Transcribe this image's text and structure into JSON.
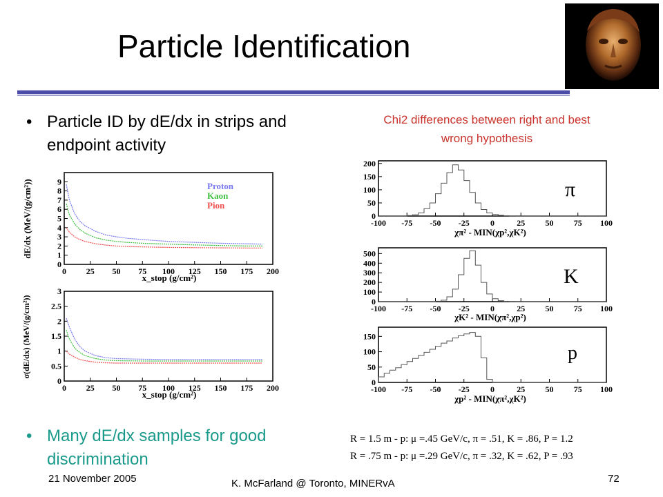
{
  "slide": {
    "title": "Particle Identification",
    "bullets": [
      "Particle ID by dE/dx in strips and endpoint activity",
      "Many dE/dx samples for good discrimination"
    ],
    "chi2_caption": "Chi2 differences between right and best wrong hypothesis",
    "resolution_lines": [
      "R = 1.5 m -  p: μ =.45 GeV/c,  π = .51,  K = .86,  P = 1.2",
      "R = .75 m -  p: μ =.29 GeV/c,  π = .32,  K = .62,  P = .93"
    ],
    "footer": {
      "date": "21 November 2005",
      "author": "K. McFarland @ Toronto, MINERvA",
      "page": "72"
    },
    "colors": {
      "title_rule": "#4b4ba8",
      "bullet2": "#1a9a8a",
      "caption": "#c8322b",
      "proton": "#7878f0",
      "kaon": "#40c040",
      "pion": "#f05050"
    }
  },
  "chart_data": [
    {
      "type": "line",
      "xlabel": "x_stop (g/cm²)",
      "ylabel": "dE/dx (MeV/(g/cm²))",
      "xlim": [
        0,
        200
      ],
      "ylim": [
        0,
        10
      ],
      "xticks": [
        0,
        25,
        50,
        75,
        100,
        125,
        150,
        175,
        200
      ],
      "yticks": [
        0,
        1,
        2,
        3,
        4,
        5,
        6,
        7,
        8,
        9
      ],
      "legend": [
        "Proton",
        "Kaon",
        "Pion"
      ],
      "legend_position": "top-right",
      "x": [
        2,
        5,
        10,
        15,
        20,
        30,
        40,
        50,
        60,
        75,
        100,
        125,
        150,
        175,
        190
      ],
      "series": [
        {
          "name": "Proton",
          "values": [
            8.7,
            7.0,
            5.5,
            4.7,
            4.2,
            3.6,
            3.2,
            3.0,
            2.85,
            2.7,
            2.5,
            2.4,
            2.3,
            2.25,
            2.2
          ]
        },
        {
          "name": "Kaon",
          "values": [
            6.6,
            5.4,
            4.4,
            3.8,
            3.4,
            2.9,
            2.65,
            2.5,
            2.4,
            2.3,
            2.2,
            2.12,
            2.05,
            2.0,
            2.0
          ]
        },
        {
          "name": "Pion",
          "values": [
            4.0,
            3.5,
            3.0,
            2.7,
            2.5,
            2.25,
            2.1,
            2.0,
            1.95,
            1.9,
            1.85,
            1.82,
            1.8,
            1.78,
            1.78
          ]
        }
      ]
    },
    {
      "type": "line",
      "xlabel": "x_stop (g/cm²)",
      "ylabel": "σ(dE/dx) (MeV/(g/cm²))",
      "xlim": [
        0,
        200
      ],
      "ylim": [
        0,
        3
      ],
      "xticks": [
        0,
        25,
        50,
        75,
        100,
        125,
        150,
        175,
        200
      ],
      "yticks": [
        0,
        0.5,
        1,
        1.5,
        2,
        2.5,
        3
      ],
      "x": [
        2,
        5,
        10,
        15,
        20,
        30,
        40,
        50,
        75,
        100,
        125,
        150,
        175,
        190
      ],
      "series": [
        {
          "name": "Proton",
          "values": [
            2.1,
            1.8,
            1.4,
            1.15,
            1.0,
            0.85,
            0.78,
            0.75,
            0.73,
            0.72,
            0.72,
            0.72,
            0.72,
            0.72
          ]
        },
        {
          "name": "Kaon",
          "values": [
            1.7,
            1.4,
            1.1,
            0.95,
            0.85,
            0.75,
            0.7,
            0.68,
            0.67,
            0.67,
            0.67,
            0.67,
            0.67,
            0.67
          ]
        },
        {
          "name": "Pion",
          "values": [
            1.0,
            0.9,
            0.8,
            0.72,
            0.68,
            0.63,
            0.61,
            0.6,
            0.6,
            0.6,
            0.6,
            0.6,
            0.6,
            0.6
          ]
        }
      ]
    },
    {
      "type": "histogram",
      "label": "π",
      "xlabel": "χπ² - MIN(χp²,χK²)",
      "xlim": [
        -100,
        100
      ],
      "ylim": [
        0,
        210
      ],
      "xticks": [
        -100,
        -75,
        -50,
        -25,
        0,
        25,
        50,
        75,
        100
      ],
      "yticks": [
        0,
        50,
        100,
        150,
        200
      ],
      "bin_edges_start": -100,
      "bin_width": 5,
      "values": [
        0,
        0,
        0,
        0,
        0,
        2,
        5,
        12,
        28,
        50,
        85,
        125,
        165,
        195,
        175,
        135,
        90,
        50,
        25,
        12,
        6,
        3,
        1,
        0,
        0,
        0,
        0,
        0,
        0,
        0,
        0,
        0,
        0,
        0,
        0,
        0,
        0,
        0,
        0,
        0
      ]
    },
    {
      "type": "histogram",
      "label": "K",
      "xlabel": "χK² - MIN(χπ²,χp²)",
      "xlim": [
        -100,
        100
      ],
      "ylim": [
        0,
        560
      ],
      "xticks": [
        -100,
        -75,
        -50,
        -25,
        0,
        25,
        50,
        75,
        100
      ],
      "yticks": [
        0,
        100,
        200,
        300,
        400,
        500
      ],
      "bin_edges_start": -100,
      "bin_width": 5,
      "values": [
        0,
        0,
        0,
        0,
        0,
        0,
        0,
        0,
        0,
        0,
        4,
        15,
        50,
        130,
        280,
        450,
        530,
        380,
        200,
        80,
        30,
        10,
        3,
        1,
        0,
        0,
        0,
        0,
        0,
        0,
        0,
        0,
        0,
        0,
        0,
        0,
        0,
        0,
        0,
        0
      ]
    },
    {
      "type": "histogram",
      "label": "p",
      "xlabel": "χp² - MIN(χπ²,χK²)",
      "xlim": [
        -100,
        100
      ],
      "ylim": [
        0,
        180
      ],
      "xticks": [
        -100,
        -75,
        -50,
        -25,
        0,
        25,
        50,
        75,
        100
      ],
      "yticks": [
        0,
        50,
        100,
        150
      ],
      "bin_edges_start": -100,
      "bin_width": 5,
      "values": [
        18,
        30,
        40,
        48,
        58,
        68,
        78,
        88,
        98,
        108,
        118,
        128,
        135,
        145,
        152,
        158,
        163,
        150,
        80,
        10,
        0,
        0,
        0,
        0,
        0,
        0,
        0,
        0,
        0,
        0,
        0,
        0,
        0,
        0,
        0,
        0,
        0,
        0,
        0,
        0
      ]
    }
  ]
}
